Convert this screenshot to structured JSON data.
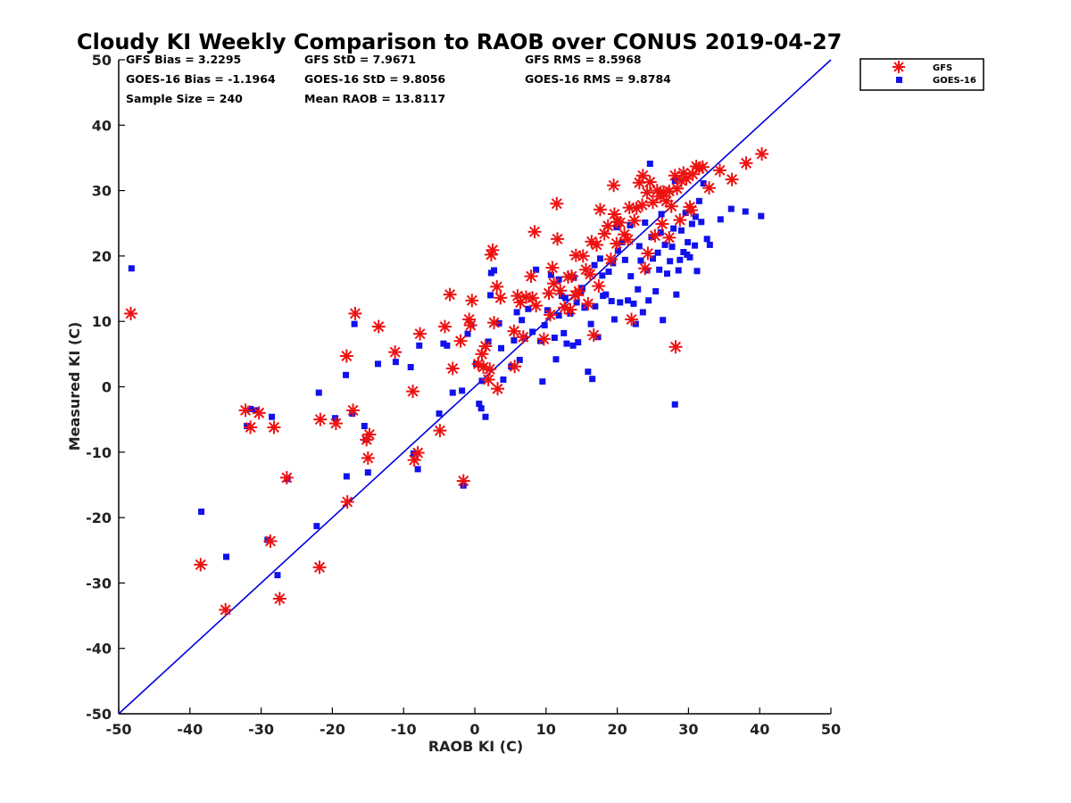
{
  "chart_data": {
    "type": "scatter",
    "title": "Cloudy KI Weekly Comparison to RAOB over CONUS 2019-04-27",
    "xlabel": "RAOB KI (C)",
    "ylabel": "Measured KI (C)",
    "xlim": [
      -50,
      50
    ],
    "ylim": [
      -50,
      50
    ],
    "xticks": [
      "-50",
      "-40",
      "-30",
      "-20",
      "-10",
      "0",
      "10",
      "20",
      "30",
      "40",
      "50"
    ],
    "yticks": [
      "50",
      "40",
      "30",
      "20",
      "10",
      "0",
      "-10",
      "-20",
      "-30",
      "-40",
      "-50"
    ],
    "grid": false,
    "legend_position": "top-right, outside plot",
    "stats": [
      "GFS Bias = 3.2295",
      "GOES-16 Bias = -1.1964",
      "Sample Size = 240",
      "GFS StD = 7.9671",
      "GOES-16 StD = 9.8056",
      "Mean RAOB = 13.8117",
      "GFS RMS = 8.5968",
      "GOES-16 RMS = 9.8784"
    ],
    "reference_line": {
      "type": "1:1",
      "from": [
        -50,
        -50
      ],
      "to": [
        50,
        50
      ],
      "color": "#0000dd"
    },
    "series": [
      {
        "name": "GFS",
        "marker": "asterisk",
        "color": "#ee1111",
        "points": [
          [
            -48.3,
            11.2
          ],
          [
            -38.5,
            -27.2
          ],
          [
            -35.0,
            -34.1
          ],
          [
            -32.2,
            -3.6
          ],
          [
            -31.5,
            -6.2
          ],
          [
            -30.3,
            -4.0
          ],
          [
            -28.7,
            -23.6
          ],
          [
            -28.2,
            -6.2
          ],
          [
            -27.4,
            -32.4
          ],
          [
            -26.4,
            -13.9
          ],
          [
            -21.8,
            -27.6
          ],
          [
            -21.7,
            -5.0
          ],
          [
            -19.5,
            -5.6
          ],
          [
            -18.0,
            4.7
          ],
          [
            -17.9,
            -17.6
          ],
          [
            -17.1,
            -3.6
          ],
          [
            -16.8,
            11.2
          ],
          [
            -15.2,
            -8.1
          ],
          [
            -15.0,
            -10.9
          ],
          [
            -14.8,
            -7.3
          ],
          [
            -13.5,
            9.2
          ],
          [
            -11.2,
            5.3
          ],
          [
            -8.7,
            -0.7
          ],
          [
            -8.5,
            -11.2
          ],
          [
            -8.0,
            -10.1
          ],
          [
            -7.7,
            8.1
          ],
          [
            -4.9,
            -6.7
          ],
          [
            -4.2,
            9.2
          ],
          [
            -3.5,
            14.1
          ],
          [
            -3.1,
            2.8
          ],
          [
            -2.0,
            7.0
          ],
          [
            -1.6,
            -14.4
          ],
          [
            -0.8,
            10.3
          ],
          [
            -0.6,
            9.4
          ],
          [
            -0.4,
            13.2
          ],
          [
            0.5,
            3.5
          ],
          [
            1.0,
            5.0
          ],
          [
            1.2,
            3.0
          ],
          [
            1.5,
            6.2
          ],
          [
            1.9,
            1.1
          ],
          [
            2.1,
            2.7
          ],
          [
            2.3,
            20.2
          ],
          [
            2.5,
            20.9
          ],
          [
            2.7,
            9.8
          ],
          [
            3.1,
            15.3
          ],
          [
            3.6,
            13.6
          ],
          [
            3.2,
            -0.3
          ],
          [
            5.5,
            8.5
          ],
          [
            5.6,
            3.1
          ],
          [
            6.0,
            13.9
          ],
          [
            6.4,
            12.9
          ],
          [
            6.8,
            7.6
          ],
          [
            7.2,
            13.7
          ],
          [
            7.9,
            16.9
          ],
          [
            8.1,
            13.6
          ],
          [
            8.6,
            12.4
          ],
          [
            8.4,
            23.7
          ],
          [
            9.7,
            7.3
          ],
          [
            10.4,
            14.3
          ],
          [
            10.9,
            18.2
          ],
          [
            11.1,
            15.8
          ],
          [
            11.5,
            28.0
          ],
          [
            11.6,
            22.6
          ],
          [
            12.6,
            12.1
          ],
          [
            13.1,
            16.8
          ],
          [
            13.6,
            16.9
          ],
          [
            14.2,
            20.1
          ],
          [
            14.6,
            14.6
          ],
          [
            15.2,
            20.0
          ],
          [
            15.6,
            17.9
          ],
          [
            15.9,
            12.7
          ],
          [
            16.4,
            22.2
          ],
          [
            16.7,
            7.9
          ],
          [
            17.1,
            21.7
          ],
          [
            17.6,
            27.1
          ],
          [
            18.2,
            23.4
          ],
          [
            18.7,
            24.6
          ],
          [
            19.5,
            30.8
          ],
          [
            19.6,
            26.4
          ],
          [
            20.0,
            25.2
          ],
          [
            20.4,
            25.1
          ],
          [
            21.0,
            23.3
          ],
          [
            21.5,
            22.5
          ],
          [
            22.0,
            10.3
          ],
          [
            22.7,
            27.3
          ],
          [
            23.1,
            31.2
          ],
          [
            23.6,
            32.3
          ],
          [
            23.5,
            27.8
          ],
          [
            24.2,
            29.7
          ],
          [
            24.6,
            31.3
          ],
          [
            25.0,
            28.2
          ],
          [
            25.6,
            30.0
          ],
          [
            26.1,
            29.1
          ],
          [
            26.5,
            29.8
          ],
          [
            26.9,
            28.4
          ],
          [
            27.3,
            29.9
          ],
          [
            27.6,
            27.6
          ],
          [
            28.1,
            32.3
          ],
          [
            28.4,
            30.3
          ],
          [
            28.2,
            6.1
          ],
          [
            29.0,
            31.5
          ],
          [
            29.3,
            32.7
          ],
          [
            29.7,
            31.8
          ],
          [
            30.2,
            27.5
          ],
          [
            30.6,
            32.5
          ],
          [
            31.1,
            33.7
          ],
          [
            31.5,
            33.4
          ],
          [
            32.0,
            33.6
          ],
          [
            32.9,
            30.4
          ],
          [
            34.4,
            33.1
          ],
          [
            36.1,
            31.7
          ],
          [
            38.1,
            34.2
          ],
          [
            40.3,
            35.6
          ],
          [
            19.1,
            19.5
          ],
          [
            17.4,
            15.4
          ],
          [
            12.0,
            14.7
          ],
          [
            13.4,
            11.8
          ],
          [
            24.3,
            20.4
          ],
          [
            26.3,
            24.9
          ],
          [
            21.7,
            27.4
          ],
          [
            28.8,
            25.5
          ],
          [
            27.3,
            22.8
          ],
          [
            23.9,
            18.1
          ],
          [
            16.2,
            17.2
          ],
          [
            10.6,
            11.0
          ],
          [
            14.1,
            14.0
          ],
          [
            30.4,
            27.0
          ],
          [
            22.4,
            25.4
          ],
          [
            25.3,
            23.1
          ],
          [
            19.9,
            21.9
          ]
        ]
      },
      {
        "name": "GOES-16",
        "marker": "square",
        "color": "#1111ee",
        "points": [
          [
            -48.2,
            18.1
          ],
          [
            -38.4,
            -19.1
          ],
          [
            -34.9,
            -26.0
          ],
          [
            -32.0,
            -6.0
          ],
          [
            -31.5,
            -3.4
          ],
          [
            -30.7,
            -3.6
          ],
          [
            -28.5,
            -4.6
          ],
          [
            -29.1,
            -23.4
          ],
          [
            -27.7,
            -28.8
          ],
          [
            -26.3,
            -14.1
          ],
          [
            -22.2,
            -21.3
          ],
          [
            -21.9,
            -0.9
          ],
          [
            -19.6,
            -4.8
          ],
          [
            -18.1,
            1.8
          ],
          [
            -18.0,
            -13.7
          ],
          [
            -17.2,
            -4.1
          ],
          [
            -16.9,
            9.6
          ],
          [
            -15.5,
            -6.0
          ],
          [
            -15.3,
            -8.1
          ],
          [
            -15.0,
            -13.1
          ],
          [
            -13.6,
            3.5
          ],
          [
            -11.1,
            3.8
          ],
          [
            -9.0,
            3.0
          ],
          [
            -8.6,
            -10.2
          ],
          [
            -8.0,
            -12.6
          ],
          [
            -7.8,
            6.3
          ],
          [
            -5.0,
            -4.1
          ],
          [
            -4.4,
            6.6
          ],
          [
            -3.9,
            6.3
          ],
          [
            -3.1,
            -0.9
          ],
          [
            -1.8,
            -0.6
          ],
          [
            -1.6,
            -15.1
          ],
          [
            -1.0,
            8.1
          ],
          [
            -0.5,
            9.5
          ],
          [
            0.2,
            3.5
          ],
          [
            0.6,
            -2.6
          ],
          [
            0.9,
            -3.3
          ],
          [
            1.0,
            0.9
          ],
          [
            1.5,
            -4.6
          ],
          [
            1.9,
            6.9
          ],
          [
            2.2,
            14.0
          ],
          [
            2.3,
            17.4
          ],
          [
            2.7,
            17.8
          ],
          [
            3.4,
            9.7
          ],
          [
            3.7,
            5.9
          ],
          [
            4.0,
            1.1
          ],
          [
            5.1,
            3.1
          ],
          [
            5.5,
            7.1
          ],
          [
            5.9,
            11.4
          ],
          [
            6.3,
            4.1
          ],
          [
            6.6,
            10.2
          ],
          [
            7.0,
            7.4
          ],
          [
            7.5,
            11.9
          ],
          [
            8.1,
            8.4
          ],
          [
            8.6,
            17.9
          ],
          [
            9.2,
            7.0
          ],
          [
            9.5,
            0.8
          ],
          [
            9.8,
            9.4
          ],
          [
            10.2,
            11.7
          ],
          [
            10.7,
            17.1
          ],
          [
            11.2,
            7.5
          ],
          [
            11.4,
            4.2
          ],
          [
            11.8,
            10.9
          ],
          [
            12.2,
            13.9
          ],
          [
            12.5,
            8.2
          ],
          [
            12.9,
            6.6
          ],
          [
            13.4,
            11.2
          ],
          [
            13.8,
            6.3
          ],
          [
            14.3,
            12.9
          ],
          [
            14.5,
            6.8
          ],
          [
            15.1,
            15.1
          ],
          [
            15.4,
            12.1
          ],
          [
            15.9,
            2.3
          ],
          [
            16.3,
            9.6
          ],
          [
            16.5,
            1.2
          ],
          [
            16.9,
            12.3
          ],
          [
            17.3,
            7.6
          ],
          [
            17.6,
            19.6
          ],
          [
            18.0,
            13.9
          ],
          [
            18.4,
            14.1
          ],
          [
            18.8,
            17.6
          ],
          [
            19.2,
            13.1
          ],
          [
            19.6,
            10.3
          ],
          [
            19.9,
            24.4
          ],
          [
            20.4,
            12.9
          ],
          [
            20.7,
            22.1
          ],
          [
            21.1,
            19.4
          ],
          [
            21.5,
            13.2
          ],
          [
            21.9,
            16.9
          ],
          [
            22.3,
            12.7
          ],
          [
            22.6,
            9.6
          ],
          [
            22.9,
            14.9
          ],
          [
            23.3,
            19.3
          ],
          [
            23.6,
            11.4
          ],
          [
            23.9,
            25.1
          ],
          [
            24.2,
            17.8
          ],
          [
            24.4,
            13.2
          ],
          [
            24.6,
            34.1
          ],
          [
            25.0,
            19.6
          ],
          [
            25.4,
            14.6
          ],
          [
            25.7,
            20.5
          ],
          [
            26.1,
            23.6
          ],
          [
            26.4,
            10.2
          ],
          [
            26.7,
            21.7
          ],
          [
            27.0,
            17.3
          ],
          [
            27.4,
            19.2
          ],
          [
            27.7,
            21.4
          ],
          [
            28.1,
            31.5
          ],
          [
            28.3,
            14.1
          ],
          [
            28.1,
            -2.7
          ],
          [
            28.6,
            17.8
          ],
          [
            29.0,
            23.9
          ],
          [
            29.3,
            20.6
          ],
          [
            29.6,
            26.6
          ],
          [
            29.9,
            22.1
          ],
          [
            30.2,
            19.8
          ],
          [
            30.5,
            24.9
          ],
          [
            30.9,
            21.6
          ],
          [
            31.2,
            17.7
          ],
          [
            31.5,
            28.4
          ],
          [
            31.8,
            25.2
          ],
          [
            32.1,
            31.1
          ],
          [
            32.6,
            22.6
          ],
          [
            33.0,
            21.7
          ],
          [
            34.5,
            25.6
          ],
          [
            36.0,
            27.2
          ],
          [
            38.0,
            26.8
          ],
          [
            40.2,
            26.1
          ],
          [
            12.7,
            13.6
          ],
          [
            14.9,
            14.5
          ],
          [
            17.9,
            17.0
          ],
          [
            20.1,
            20.8
          ],
          [
            21.8,
            24.7
          ],
          [
            24.8,
            22.9
          ],
          [
            26.2,
            26.4
          ],
          [
            27.9,
            24.2
          ],
          [
            29.8,
            20.2
          ],
          [
            31.0,
            26.0
          ],
          [
            11.8,
            16.4
          ],
          [
            13.9,
            16.7
          ],
          [
            16.8,
            18.6
          ],
          [
            19.4,
            18.9
          ],
          [
            23.1,
            21.5
          ],
          [
            25.9,
            17.9
          ],
          [
            28.8,
            19.4
          ]
        ]
      }
    ]
  }
}
